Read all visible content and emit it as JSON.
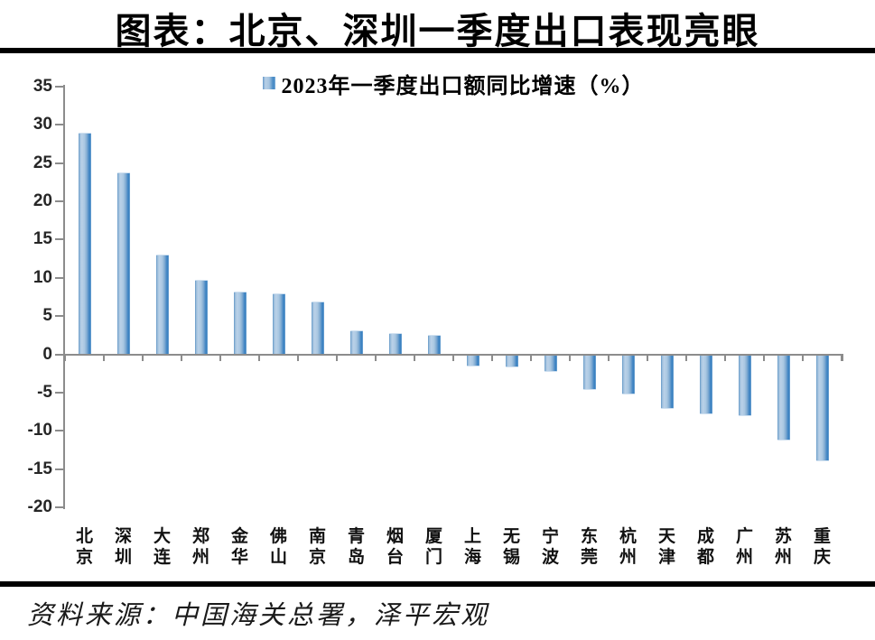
{
  "page": {
    "title": "图表：北京、深圳一季度出口表现亮眼",
    "source": "资料来源：中国海关总署，泽平宏观"
  },
  "chart_data": {
    "type": "bar",
    "title": "图表：北京、深圳一季度出口表现亮眼",
    "legend": [
      "2023年一季度出口额同比增速（%）"
    ],
    "legend_position": "top-center",
    "categories": [
      "北京",
      "深圳",
      "大连",
      "郑州",
      "金华",
      "佛山",
      "南京",
      "青岛",
      "烟台",
      "厦门",
      "上海",
      "无锡",
      "宁波",
      "东莞",
      "杭州",
      "天津",
      "成都",
      "广州",
      "苏州",
      "重庆"
    ],
    "values": [
      29.0,
      23.8,
      13.1,
      9.7,
      8.2,
      8.0,
      6.9,
      3.1,
      2.8,
      2.6,
      -1.4,
      -1.5,
      -2.1,
      -4.4,
      -5.0,
      -6.9,
      -7.6,
      -7.8,
      -11.0,
      -13.7
    ],
    "ylabel": "",
    "xlabel": "",
    "ylim": [
      -20,
      35
    ],
    "yticks": [
      35,
      30,
      25,
      20,
      15,
      10,
      5,
      0,
      -5,
      -10,
      -15,
      -20
    ],
    "grid": false,
    "colors": {
      "bar_light": "#bad1e8",
      "bar_dark": "#3a80c0",
      "axis": "#8c8c8c",
      "tick_label": "#262626",
      "title_text": "#000000",
      "rule": "#000000"
    }
  }
}
